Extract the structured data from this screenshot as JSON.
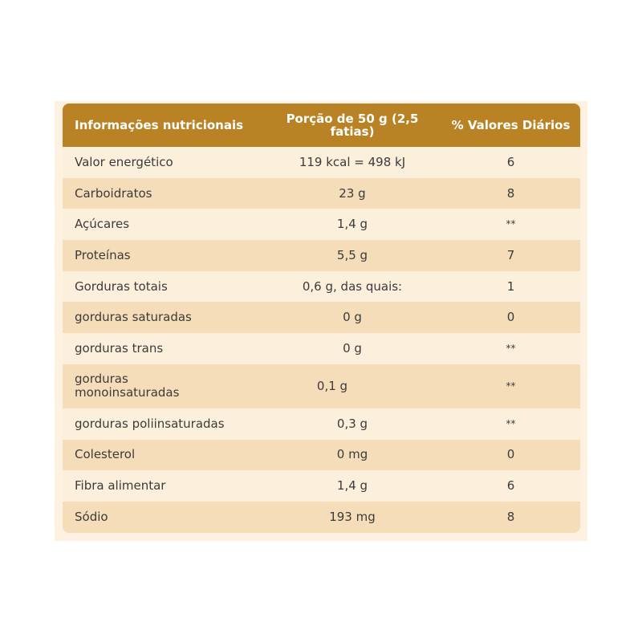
{
  "table": {
    "headers": [
      "Informações nutricionais",
      "Porção de 50 g (2,5 fatias)",
      "% Valores Diários"
    ],
    "rows": [
      {
        "nutrient": "Valor energético",
        "amount": "119 kcal = 498 kJ",
        "dv": "6"
      },
      {
        "nutrient": "Carboidratos",
        "amount": "23 g",
        "dv": "8"
      },
      {
        "nutrient": "Açúcares",
        "amount": "1,4 g",
        "dv": "**"
      },
      {
        "nutrient": "Proteínas",
        "amount": "5,5 g",
        "dv": "7"
      },
      {
        "nutrient": "Gorduras totais",
        "amount": "0,6 g, das quais:",
        "dv": "1"
      },
      {
        "nutrient": "gorduras saturadas",
        "amount": "0 g",
        "dv": "0"
      },
      {
        "nutrient": "gorduras trans",
        "amount": "0 g",
        "dv": "**"
      },
      {
        "nutrient": "gorduras monoinsaturadas",
        "amount": "0,1 g",
        "dv": "**"
      },
      {
        "nutrient": "gorduras poliinsaturadas",
        "amount": "0,3 g",
        "dv": "**"
      },
      {
        "nutrient": "Colesterol",
        "amount": "0 mg",
        "dv": "0"
      },
      {
        "nutrient": "Fibra alimentar",
        "amount": "1,4 g",
        "dv": "6"
      },
      {
        "nutrient": "Sódio",
        "amount": "193 mg",
        "dv": "8"
      }
    ]
  },
  "colors": {
    "header_bg": "#b98224",
    "row_light": "#fcefdc",
    "row_dark": "#f6ddb9",
    "panel_bg": "#fdf2e1"
  }
}
